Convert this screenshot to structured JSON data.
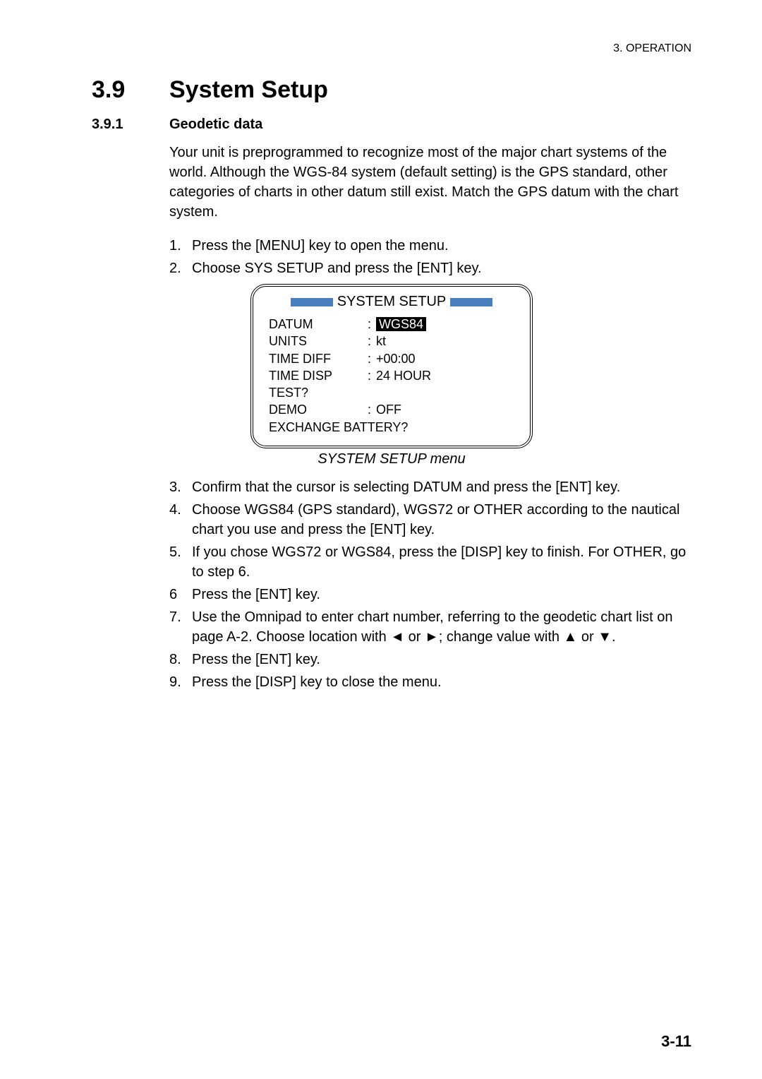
{
  "header": {
    "context": "3. OPERATION"
  },
  "section": {
    "num": "3.9",
    "title": "System Setup"
  },
  "subsection": {
    "num": "3.9.1",
    "title": "Geodetic data"
  },
  "intro": "Your unit is preprogrammed to recognize most of the major chart systems of the world. Although the WGS-84 system (default setting) is the GPS standard, other categories of charts in other datum still exist. Match the GPS datum with the chart system.",
  "steps1": [
    {
      "n": "1.",
      "t": "Press the [MENU] key to open the menu."
    },
    {
      "n": "2.",
      "t": "Choose SYS SETUP and press the [ENT] key."
    }
  ],
  "setup": {
    "title": "SYSTEM SETUP",
    "rows": [
      {
        "label": "DATUM",
        "val": "WGS84",
        "hl": true
      },
      {
        "label": "UNITS",
        "val": "kt",
        "hl": false
      },
      {
        "label": "TIME DIFF",
        "val": "+00:00",
        "hl": false
      },
      {
        "label": "TIME DISP",
        "val": "24 HOUR",
        "hl": false
      },
      {
        "label": "TEST?",
        "val": "",
        "hl": false,
        "nocolon": true
      },
      {
        "label": "DEMO",
        "val": "OFF",
        "hl": false
      }
    ],
    "last": "EXCHANGE BATTERY?"
  },
  "caption": "SYSTEM SETUP menu",
  "steps2": [
    {
      "n": "3.",
      "t": "Confirm that the cursor is selecting DATUM and press the [ENT] key."
    },
    {
      "n": "4.",
      "t": "Choose WGS84 (GPS standard), WGS72 or OTHER according to the nautical chart you use and press the [ENT] key."
    },
    {
      "n": "5.",
      "t": "If you chose WGS72 or WGS84, press the [DISP] key to finish. For OTHER, go to step 6."
    },
    {
      "n": "6",
      "t": "Press the [ENT] key."
    },
    {
      "n": "7.",
      "t": "Use the Omnipad to enter chart number, referring to the geodetic chart list on page A-2. Choose location with ◄ or ►; change value with ▲ or ▼."
    },
    {
      "n": "8.",
      "t": "Press the [ENT] key."
    },
    {
      "n": "9.",
      "t": "Press the [DISP] key to close the menu."
    }
  ],
  "page": "3-11",
  "colors": {
    "bar": "#4a7fbf",
    "text": "#000000",
    "bg": "#ffffff"
  }
}
